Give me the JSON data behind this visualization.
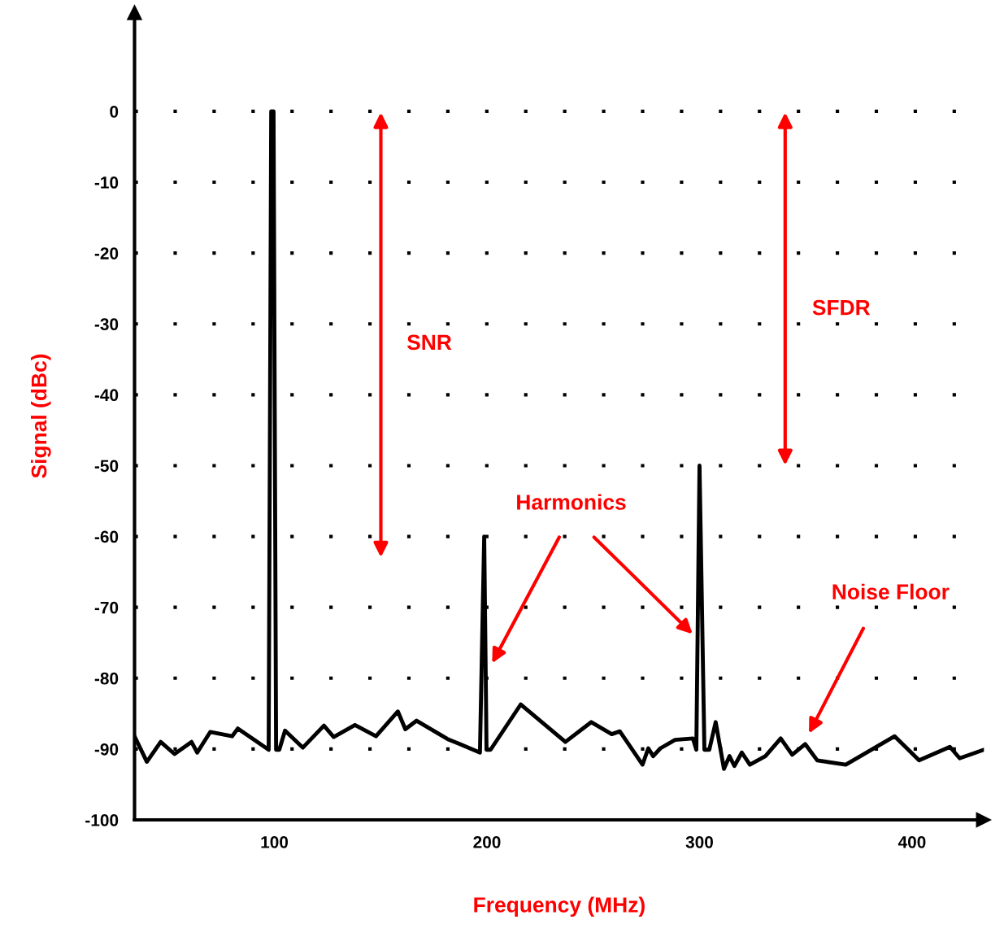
{
  "chart_data": {
    "type": "line",
    "xlabel": "Frequency (MHz)",
    "ylabel": "Signal (dBc)",
    "xlim": [
      34.2,
      433.8
    ],
    "ylim": [
      -100,
      14
    ],
    "xticks": [
      100,
      200,
      300,
      400
    ],
    "yticks": [
      0,
      -10,
      -20,
      -30,
      -40,
      -50,
      -60,
      -70,
      -80,
      -90,
      -100
    ],
    "grid": "y",
    "marker": "none",
    "line_style": "solid",
    "series": [
      {
        "color": "#000000",
        "x": [
          34.2,
          40.0,
          46.5,
          53.0,
          61.0,
          63.7,
          69.8,
          80.1,
          82.8,
          97.3,
          98.5,
          99.6,
          100.8,
          102.3,
          105.0,
          113.4,
          123.3,
          127.9,
          137.9,
          147.8,
          158.1,
          161.6,
          166.9,
          181.5,
          187.2,
          196.7,
          198.7,
          199.8,
          201.7,
          215.9,
          236.9,
          249.1,
          258.7,
          262.5,
          273.2,
          275.9,
          278.2,
          281.6,
          288.5,
          296.9,
          298.5,
          300.0,
          302.3,
          304.6,
          307.6,
          311.5,
          314.1,
          316.4,
          319.9,
          323.7,
          331.0,
          338.2,
          343.6,
          349.7,
          355.4,
          368.8,
          391.8,
          403.3,
          417.8,
          422.4,
          430.0,
          433.8
        ],
        "values": [
          -88.2,
          -91.8,
          -89.0,
          -90.7,
          -89.0,
          -90.5,
          -87.6,
          -88.2,
          -87.1,
          -90.1,
          0,
          0,
          -90.1,
          -90.1,
          -87.4,
          -89.8,
          -86.7,
          -88.3,
          -86.6,
          -88.2,
          -84.7,
          -87.2,
          -86.0,
          -88.6,
          -89.3,
          -90.5,
          -60,
          -90.1,
          -90.1,
          -83.7,
          -89.0,
          -86.2,
          -87.9,
          -87.5,
          -92.2,
          -89.9,
          -91.0,
          -89.9,
          -88.7,
          -88.5,
          -90.1,
          -50,
          -90.1,
          -90.1,
          -86.2,
          -92.8,
          -91.0,
          -92.4,
          -90.5,
          -92.2,
          -91.0,
          -88.5,
          -90.8,
          -89.3,
          -91.6,
          -92.2,
          -88.2,
          -91.6,
          -89.7,
          -91.3,
          -90.5,
          -90.1
        ]
      }
    ],
    "annotations": [
      "SNR",
      "SFDR",
      "Harmonics",
      "Noise Floor"
    ]
  }
}
